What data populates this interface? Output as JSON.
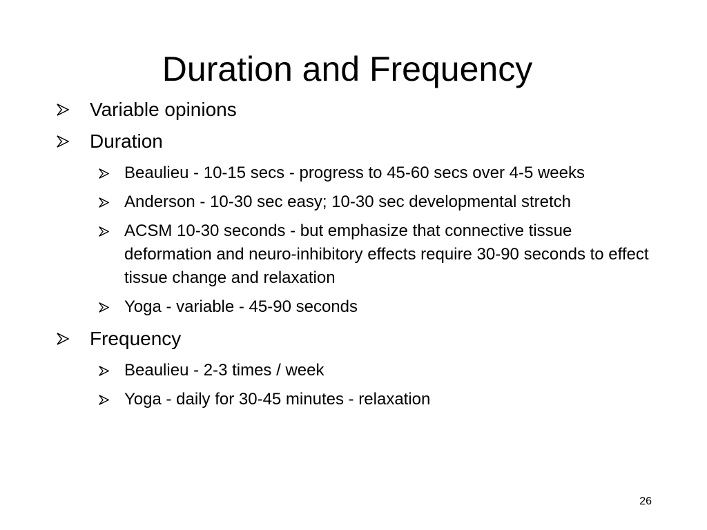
{
  "slide": {
    "title": "Duration and Frequency",
    "page_number": "26",
    "bullet_icon": "arrowhead-bullet-icon",
    "bullet_color": "#000000",
    "bullets": [
      {
        "text": "Variable opinions",
        "sub": []
      },
      {
        "text": "Duration",
        "sub": [
          "Beaulieu - 10-15 secs - progress to 45-60 secs over 4-5 weeks",
          "Anderson - 10-30 sec easy; 10-30 sec developmental stretch",
          "ACSM 10-30 seconds - but emphasize that connective tissue deformation and neuro-inhibitory effects require 30-90 seconds to effect tissue change and relaxation",
          "Yoga - variable - 45-90 seconds"
        ]
      },
      {
        "text": "Frequency",
        "sub": [
          "Beaulieu - 2-3 times / week",
          "Yoga - daily for 30-45 minutes - relaxation"
        ]
      }
    ]
  }
}
